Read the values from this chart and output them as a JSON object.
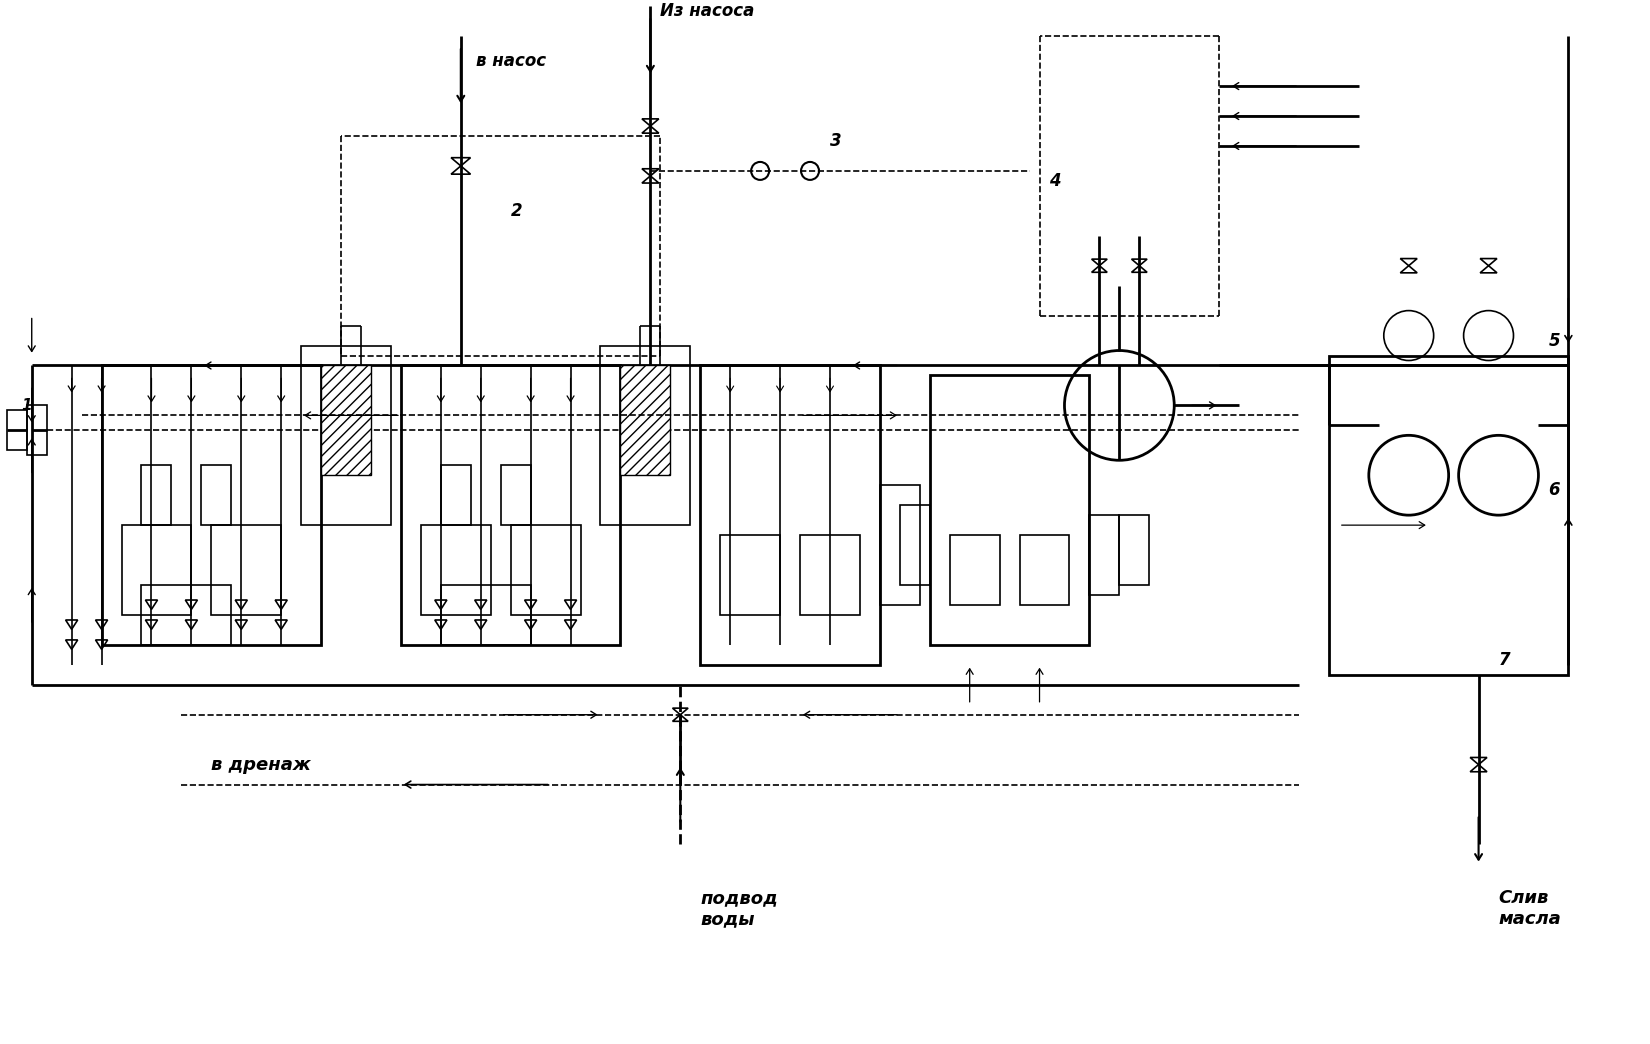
{
  "bg_color": "#ffffff",
  "lc": "#000000",
  "lw_main": 2.0,
  "lw_thin": 1.2,
  "labels": {
    "v_nasos": "в насос",
    "iz_nasosa": "Из насоса",
    "v_drenazh": "в дренаж",
    "podvod_vody": "подвод\nводы",
    "sliv_masla": "Слив\nмасла",
    "n1": "1",
    "n2": "2",
    "n3": "3",
    "n4": "4",
    "n5": "5",
    "n6": "6",
    "n7": "7"
  }
}
